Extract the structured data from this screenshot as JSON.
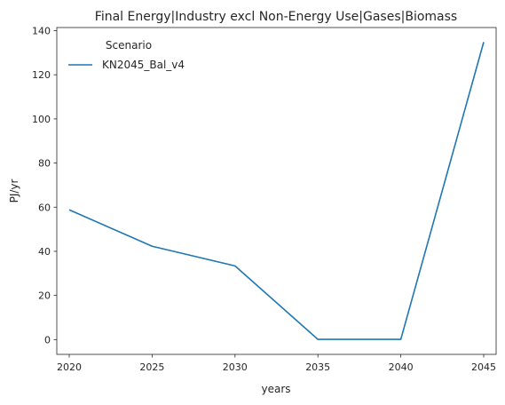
{
  "chart_data": {
    "type": "line",
    "title": "Final Energy|Industry excl Non-Energy Use|Gases|Biomass",
    "xlabel": "years",
    "ylabel": "PJ/yr",
    "x": [
      2020,
      2025,
      2030,
      2035,
      2040,
      2045
    ],
    "xticks": [
      2020,
      2025,
      2030,
      2035,
      2040,
      2045
    ],
    "yticks": [
      0,
      20,
      40,
      60,
      80,
      100,
      120,
      140
    ],
    "xlim": [
      2019.25,
      2045.75
    ],
    "ylim": [
      -6.7,
      141.4
    ],
    "grid": false,
    "legend": {
      "title": "Scenario",
      "placement": "top-left"
    },
    "series": [
      {
        "name": "KN2045_Bal_v4",
        "color": "#1f77b4",
        "values": [
          58.8,
          42.3,
          33.4,
          0.1,
          0.1,
          134.8
        ]
      }
    ]
  }
}
